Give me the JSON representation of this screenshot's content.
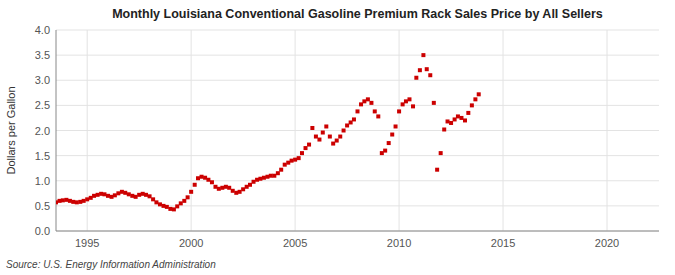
{
  "chart_data": {
    "type": "scatter",
    "title": "Monthly Louisiana Conventional Gasoline Premium Rack Sales Price by All Sellers",
    "y_label": "Dollars per Gallon",
    "source": "Source: U.S. Energy Information Administration",
    "color": "#CC0000",
    "marker": "square",
    "grid": true,
    "xlim": [
      1993.5,
      2022.5
    ],
    "ylim": [
      0.0,
      4.0
    ],
    "xticks": [
      1995,
      2000,
      2005,
      2010,
      2015,
      2020
    ],
    "yticks": [
      {
        "value": 0.0,
        "label": "0.0"
      },
      0.5,
      {
        "value": 1.0,
        "label": "1.0"
      },
      1.5,
      {
        "value": 2.0,
        "label": "2.0"
      },
      2.5,
      {
        "value": 3.0,
        "label": "3.0"
      },
      3.5,
      {
        "value": 4.0,
        "label": "4.0"
      }
    ],
    "x": [
      1993.5,
      1993.67,
      1993.83,
      1994.0,
      1994.17,
      1994.33,
      1994.5,
      1994.67,
      1994.83,
      1995.0,
      1995.17,
      1995.33,
      1995.5,
      1995.67,
      1995.83,
      1996.0,
      1996.17,
      1996.33,
      1996.5,
      1996.67,
      1996.83,
      1997.0,
      1997.17,
      1997.33,
      1997.5,
      1997.67,
      1997.83,
      1998.0,
      1998.17,
      1998.33,
      1998.5,
      1998.67,
      1998.83,
      1999.0,
      1999.17,
      1999.33,
      1999.5,
      1999.67,
      1999.83,
      2000.0,
      2000.17,
      2000.33,
      2000.5,
      2000.67,
      2000.83,
      2001.0,
      2001.17,
      2001.33,
      2001.5,
      2001.67,
      2001.83,
      2002.0,
      2002.17,
      2002.33,
      2002.5,
      2002.67,
      2002.83,
      2003.0,
      2003.17,
      2003.33,
      2003.5,
      2003.67,
      2003.83,
      2004.0,
      2004.17,
      2004.33,
      2004.5,
      2004.67,
      2004.83,
      2005.0,
      2005.17,
      2005.33,
      2005.5,
      2005.67,
      2005.83,
      2006.0,
      2006.17,
      2006.33,
      2006.5,
      2006.67,
      2006.83,
      2007.0,
      2007.17,
      2007.33,
      2007.5,
      2007.67,
      2007.83,
      2008.0,
      2008.17,
      2008.33,
      2008.5,
      2008.67,
      2008.83,
      2009.0,
      2009.17,
      2009.33,
      2009.5,
      2009.67,
      2009.83,
      2010.0,
      2010.17,
      2010.33,
      2010.5,
      2010.67,
      2010.83,
      2011.0,
      2011.17,
      2011.33,
      2011.5,
      2011.67,
      2011.83,
      2012.0,
      2012.17,
      2012.33,
      2012.5,
      2012.67,
      2012.83,
      2013.0,
      2013.17,
      2013.33,
      2013.5,
      2013.67,
      2013.83
    ],
    "values": [
      0.57,
      0.6,
      0.61,
      0.62,
      0.6,
      0.58,
      0.57,
      0.58,
      0.6,
      0.63,
      0.66,
      0.7,
      0.72,
      0.74,
      0.73,
      0.7,
      0.68,
      0.71,
      0.75,
      0.78,
      0.76,
      0.73,
      0.7,
      0.68,
      0.72,
      0.74,
      0.72,
      0.69,
      0.63,
      0.57,
      0.53,
      0.5,
      0.48,
      0.44,
      0.43,
      0.49,
      0.55,
      0.6,
      0.67,
      0.78,
      0.92,
      1.05,
      1.08,
      1.06,
      1.02,
      0.97,
      0.88,
      0.84,
      0.86,
      0.88,
      0.86,
      0.8,
      0.76,
      0.78,
      0.83,
      0.88,
      0.92,
      0.98,
      1.02,
      1.04,
      1.06,
      1.08,
      1.1,
      1.1,
      1.15,
      1.22,
      1.32,
      1.36,
      1.4,
      1.42,
      1.45,
      1.55,
      1.65,
      1.72,
      2.05,
      1.88,
      1.82,
      1.96,
      2.08,
      1.88,
      1.74,
      1.8,
      1.88,
      2.0,
      2.1,
      2.16,
      2.22,
      2.38,
      2.52,
      2.58,
      2.62,
      2.55,
      2.38,
      2.28,
      1.55,
      1.6,
      1.75,
      1.92,
      2.08,
      2.38,
      2.52,
      2.58,
      2.62,
      2.48,
      3.05,
      3.2,
      3.5,
      3.22,
      3.1,
      2.55,
      1.22,
      1.55,
      2.02,
      2.18,
      2.15,
      2.22,
      2.28,
      2.25,
      2.2,
      2.35,
      2.5,
      2.62,
      2.72
    ]
  }
}
